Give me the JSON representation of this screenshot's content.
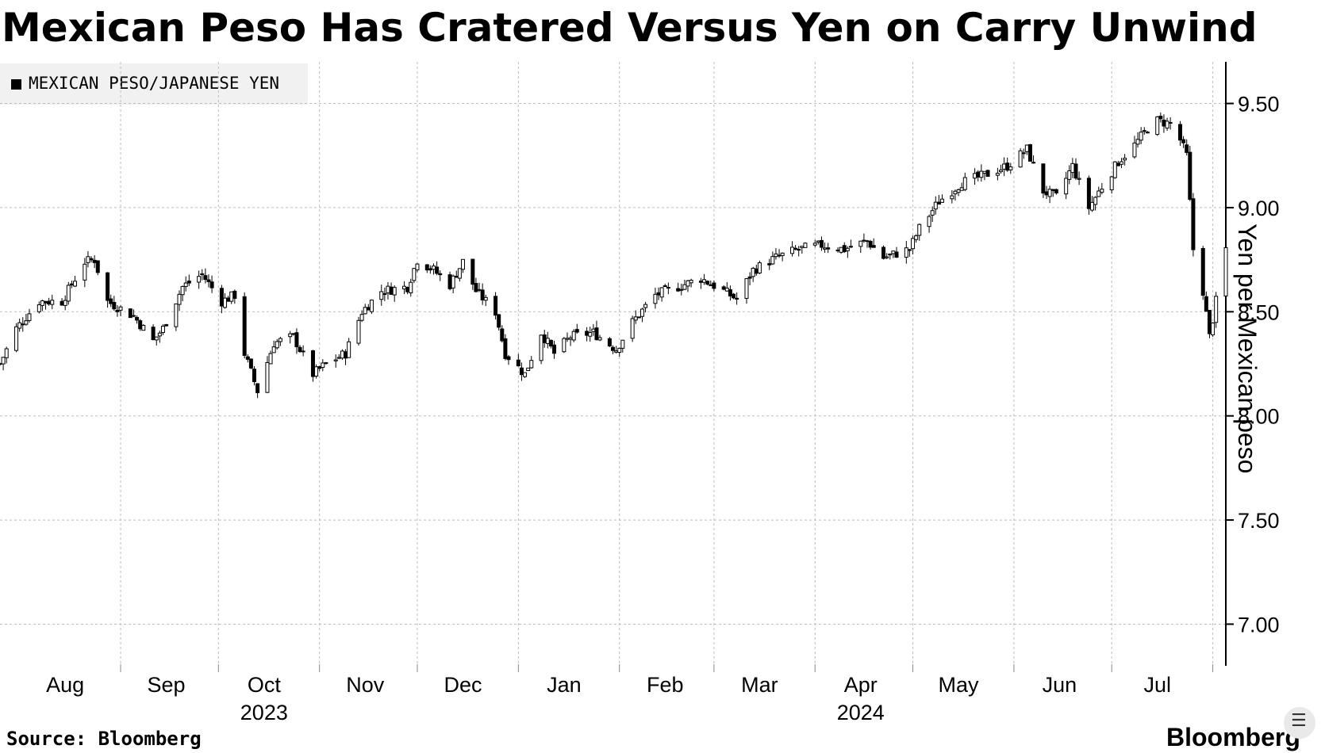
{
  "chart_data": {
    "type": "candlestick",
    "title": "Mexican Peso Has Cratered Versus Yen on Carry Unwind",
    "legend": "MEXICAN PESO/JAPANESE YEN",
    "ylabel": "Yen per Mexican peso",
    "ylim": [
      6.8,
      9.7
    ],
    "yticks": [
      7.0,
      7.5,
      8.0,
      8.5,
      9.0,
      9.5
    ],
    "ytick_labels": [
      "7.00",
      "7.50",
      "8.00",
      "8.50",
      "9.00",
      "9.50"
    ],
    "x_range": [
      "2023-07-26",
      "2024-08-05"
    ],
    "month_labels": [
      "Aug",
      "Sep",
      "Oct",
      "Nov",
      "Dec",
      "Jan",
      "Feb",
      "Mar",
      "Apr",
      "May",
      "Jun",
      "Jul"
    ],
    "month_label_dates": [
      "2023-08-15",
      "2023-09-15",
      "2023-10-15",
      "2023-11-15",
      "2023-12-15",
      "2024-01-15",
      "2024-02-15",
      "2024-03-15",
      "2024-04-15",
      "2024-05-15",
      "2024-06-15",
      "2024-07-15"
    ],
    "month_boundaries": [
      "2023-09-01",
      "2023-10-01",
      "2023-11-01",
      "2023-12-01",
      "2024-01-01",
      "2024-02-01",
      "2024-03-01",
      "2024-04-01",
      "2024-05-01",
      "2024-06-01",
      "2024-07-01",
      "2024-08-01"
    ],
    "year_labels": [
      {
        "label": "2023",
        "date": "2023-10-15"
      },
      {
        "label": "2024",
        "date": "2024-04-15"
      }
    ],
    "price_points": [
      [
        "2023-07-26",
        8.25
      ],
      [
        "2023-07-31",
        8.42
      ],
      [
        "2023-08-07",
        8.55
      ],
      [
        "2023-08-14",
        8.55
      ],
      [
        "2023-08-21",
        8.74
      ],
      [
        "2023-08-24",
        8.75
      ],
      [
        "2023-08-28",
        8.55
      ],
      [
        "2023-09-05",
        8.48
      ],
      [
        "2023-09-11",
        8.36
      ],
      [
        "2023-09-14",
        8.42
      ],
      [
        "2023-09-20",
        8.62
      ],
      [
        "2023-09-26",
        8.68
      ],
      [
        "2023-10-02",
        8.55
      ],
      [
        "2023-10-06",
        8.58
      ],
      [
        "2023-10-09",
        8.3
      ],
      [
        "2023-10-13",
        8.12
      ],
      [
        "2023-10-18",
        8.35
      ],
      [
        "2023-10-24",
        8.38
      ],
      [
        "2023-10-30",
        8.2
      ],
      [
        "2023-11-03",
        8.25
      ],
      [
        "2023-11-09",
        8.3
      ],
      [
        "2023-11-14",
        8.5
      ],
      [
        "2023-11-20",
        8.6
      ],
      [
        "2023-11-28",
        8.62
      ],
      [
        "2023-12-01",
        8.75
      ],
      [
        "2023-12-06",
        8.7
      ],
      [
        "2023-12-11",
        8.63
      ],
      [
        "2023-12-15",
        8.74
      ],
      [
        "2023-12-19",
        8.6
      ],
      [
        "2023-12-25",
        8.5
      ],
      [
        "2023-12-28",
        8.3
      ],
      [
        "2024-01-03",
        8.2
      ],
      [
        "2024-01-08",
        8.4
      ],
      [
        "2024-01-12",
        8.3
      ],
      [
        "2024-01-17",
        8.38
      ],
      [
        "2024-01-24",
        8.4
      ],
      [
        "2024-01-31",
        8.32
      ],
      [
        "2024-02-05",
        8.45
      ],
      [
        "2024-02-12",
        8.58
      ],
      [
        "2024-02-19",
        8.62
      ],
      [
        "2024-02-26",
        8.66
      ],
      [
        "2024-03-04",
        8.6
      ],
      [
        "2024-03-08",
        8.56
      ],
      [
        "2024-03-13",
        8.7
      ],
      [
        "2024-03-20",
        8.76
      ],
      [
        "2024-03-27",
        8.8
      ],
      [
        "2024-04-03",
        8.82
      ],
      [
        "2024-04-10",
        8.8
      ],
      [
        "2024-04-17",
        8.84
      ],
      [
        "2024-04-22",
        8.76
      ],
      [
        "2024-04-30",
        8.8
      ],
      [
        "2024-05-03",
        8.9
      ],
      [
        "2024-05-09",
        9.03
      ],
      [
        "2024-05-16",
        9.12
      ],
      [
        "2024-05-22",
        9.15
      ],
      [
        "2024-05-30",
        9.2
      ],
      [
        "2024-06-05",
        9.28
      ],
      [
        "2024-06-10",
        9.08
      ],
      [
        "2024-06-14",
        9.05
      ],
      [
        "2024-06-19",
        9.2
      ],
      [
        "2024-06-24",
        9.0
      ],
      [
        "2024-06-28",
        9.1
      ],
      [
        "2024-07-03",
        9.22
      ],
      [
        "2024-07-08",
        9.3
      ],
      [
        "2024-07-14",
        9.42
      ],
      [
        "2024-07-20",
        9.4
      ],
      [
        "2024-07-24",
        9.25
      ],
      [
        "2024-07-26",
        8.8
      ],
      [
        "2024-07-29",
        8.6
      ],
      [
        "2024-07-31",
        8.38
      ],
      [
        "2024-08-02",
        8.55
      ],
      [
        "2024-08-05",
        8.8
      ]
    ],
    "source": "Source: Bloomberg",
    "brand": "Bloomberg"
  }
}
